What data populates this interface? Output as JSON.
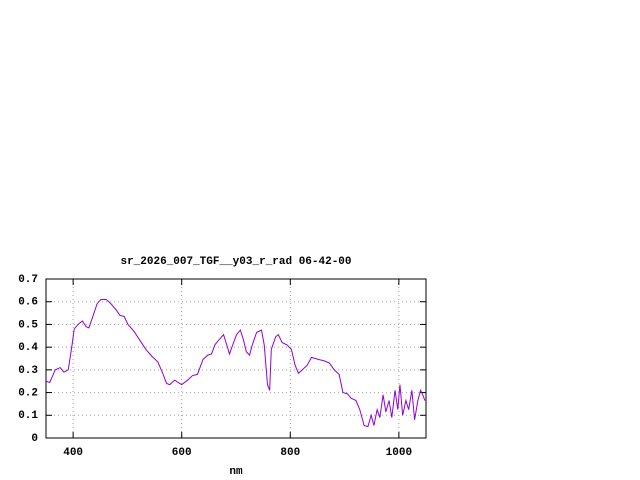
{
  "chart_data": {
    "type": "line",
    "title": "sr_2026_007_TGF__y03_r_rad 06-42-00",
    "x_label": "nm",
    "x": [
      350,
      357,
      367,
      376,
      383,
      391,
      398,
      402,
      409,
      417,
      424,
      429,
      437,
      444,
      451,
      461,
      470,
      479,
      486,
      494,
      501,
      512,
      523,
      534,
      545,
      556,
      565,
      572,
      578,
      587,
      593,
      600,
      611,
      620,
      629,
      639,
      648,
      655,
      661,
      668,
      677,
      683,
      688,
      694,
      701,
      708,
      714,
      719,
      725,
      730,
      738,
      747,
      752,
      758,
      762,
      765,
      773,
      778,
      785,
      794,
      802,
      809,
      815,
      822,
      831,
      839,
      846,
      853,
      862,
      872,
      881,
      890,
      897,
      905,
      912,
      921,
      928,
      936,
      943,
      949,
      954,
      960,
      965,
      971,
      976,
      982,
      987,
      993,
      998,
      1002,
      1007,
      1013,
      1018,
      1024,
      1029,
      1035,
      1040,
      1044,
      1048
    ],
    "series": [
      {
        "name": "sr_2026_007_TGF__y03_r_rad",
        "color": "#9400d3",
        "values": [
          0.25,
          0.245,
          0.3,
          0.31,
          0.29,
          0.3,
          0.41,
          0.48,
          0.5,
          0.515,
          0.49,
          0.485,
          0.54,
          0.59,
          0.61,
          0.61,
          0.59,
          0.565,
          0.54,
          0.535,
          0.5,
          0.47,
          0.43,
          0.39,
          0.36,
          0.335,
          0.285,
          0.24,
          0.235,
          0.255,
          0.245,
          0.235,
          0.255,
          0.275,
          0.28,
          0.345,
          0.365,
          0.37,
          0.41,
          0.43,
          0.455,
          0.41,
          0.37,
          0.41,
          0.455,
          0.475,
          0.43,
          0.38,
          0.365,
          0.41,
          0.465,
          0.475,
          0.41,
          0.235,
          0.21,
          0.39,
          0.445,
          0.455,
          0.42,
          0.41,
          0.39,
          0.32,
          0.285,
          0.3,
          0.32,
          0.355,
          0.35,
          0.345,
          0.34,
          0.33,
          0.3,
          0.28,
          0.2,
          0.195,
          0.175,
          0.165,
          0.125,
          0.055,
          0.05,
          0.1,
          0.055,
          0.125,
          0.09,
          0.19,
          0.115,
          0.165,
          0.09,
          0.21,
          0.125,
          0.235,
          0.1,
          0.165,
          0.125,
          0.21,
          0.08,
          0.165,
          0.21,
          0.19,
          0.165
        ]
      }
    ],
    "xlim": [
      350,
      1050
    ],
    "ylim": [
      0,
      0.7
    ],
    "xticks": [
      400,
      600,
      800,
      1000
    ],
    "yticks": [
      0,
      0.1,
      0.2,
      0.3,
      0.4,
      0.5,
      0.6,
      0.7
    ],
    "grid": true
  }
}
